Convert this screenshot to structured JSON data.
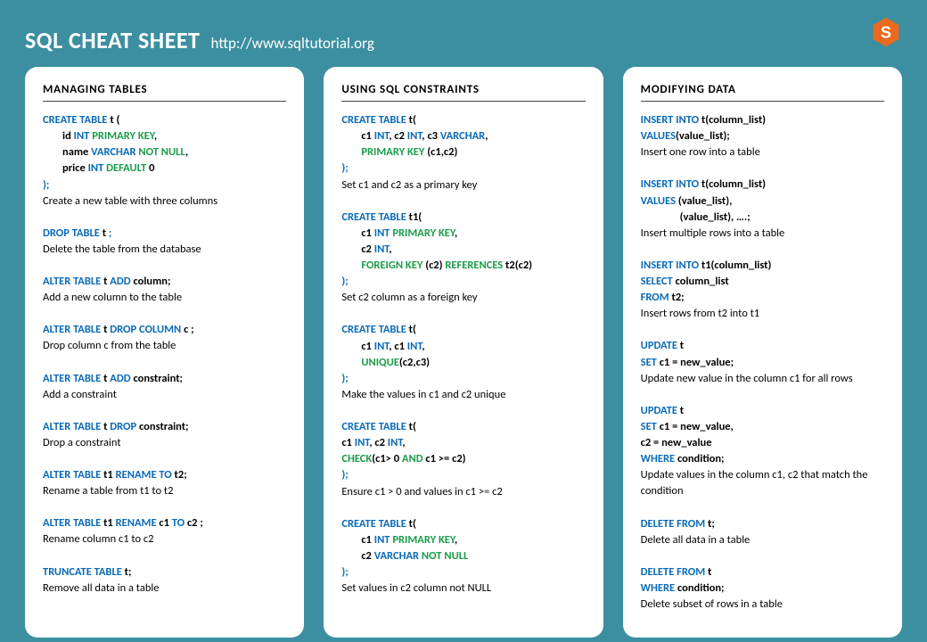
{
  "colors": {
    "page_bg": "#3b8fa0",
    "card_bg": "#ffffff",
    "keyword": "#0a6ab6",
    "function": "#1a9c4a",
    "text": "#000000",
    "title": "#ffffff",
    "logo_fill": "#e96a1f"
  },
  "header": {
    "title": "SQL CHEAT SHEET",
    "url": "http://www.sqltutorial.org"
  },
  "columns": [
    {
      "title": "MANAGING  TABLES",
      "blocks": [
        {
          "lines": [
            [
              [
                "kw",
                "CREATE TABLE "
              ],
              [
                "id",
                "t ("
              ]
            ],
            [
              "indent",
              [
                "id",
                "id "
              ],
              [
                "ty",
                "INT "
              ],
              [
                "fn",
                "PRIMARY  KEY"
              ],
              [
                "id",
                ","
              ]
            ],
            [
              "indent",
              [
                "id",
                "name "
              ],
              [
                "ty",
                "VARCHAR  "
              ],
              [
                "fn",
                "NOT NULL"
              ],
              [
                "id",
                ","
              ]
            ],
            [
              "indent",
              [
                "id",
                "price "
              ],
              [
                "ty",
                "INT "
              ],
              [
                "fn",
                "DEFAULT "
              ],
              [
                "id",
                "0"
              ]
            ],
            [
              [
                "kw",
                ");"
              ]
            ]
          ],
          "desc": "Create a new table with  three columns"
        },
        {
          "lines": [
            [
              [
                "kw",
                "DROP TABLE "
              ],
              [
                "id",
                "t "
              ],
              [
                "kw",
                ";"
              ]
            ]
          ],
          "desc": "Delete the table from the database"
        },
        {
          "lines": [
            [
              [
                "kw",
                "ALTER TABLE "
              ],
              [
                "id",
                "t "
              ],
              [
                "kw",
                "ADD "
              ],
              [
                "id",
                "column;"
              ]
            ]
          ],
          "desc": "Add a new column to the table"
        },
        {
          "lines": [
            [
              [
                "kw",
                "ALTER TABLE "
              ],
              [
                "id",
                "t "
              ],
              [
                "kw",
                "DROP COLUMN  "
              ],
              [
                "id",
                "c ;"
              ]
            ]
          ],
          "desc": "Drop column c from the table"
        },
        {
          "lines": [
            [
              [
                "kw",
                "ALTER TABLE "
              ],
              [
                "id",
                "t "
              ],
              [
                "kw",
                "ADD "
              ],
              [
                "id",
                "constraint;"
              ]
            ]
          ],
          "desc": "Add a constraint"
        },
        {
          "lines": [
            [
              [
                "kw",
                "ALTER TABLE "
              ],
              [
                "id",
                "t "
              ],
              [
                "kw",
                "DROP "
              ],
              [
                "id",
                "constraint;"
              ]
            ]
          ],
          "desc": "Drop a constraint"
        },
        {
          "lines": [
            [
              [
                "kw",
                "ALTER TABLE "
              ],
              [
                "id",
                "t1 "
              ],
              [
                "kw",
                "RENAME TO "
              ],
              [
                "id",
                "t2;"
              ]
            ]
          ],
          "desc": "Rename a table from t1 to t2"
        },
        {
          "lines": [
            [
              [
                "kw",
                "ALTER TABLE "
              ],
              [
                "id",
                "t1 "
              ],
              [
                "kw",
                "RENAME  "
              ],
              [
                "id",
                "c1 "
              ],
              [
                "kw",
                "TO "
              ],
              [
                "id",
                "c2 ;"
              ]
            ]
          ],
          "desc": "Rename column c1 to c2"
        },
        {
          "lines": [
            [
              [
                "kw",
                "TRUNCATE  TABLE "
              ],
              [
                "id",
                "t;"
              ]
            ]
          ],
          "desc": "Remove all data in a table"
        }
      ]
    },
    {
      "title": "USING  SQL CONSTRAINTS",
      "blocks": [
        {
          "lines": [
            [
              [
                "kw",
                "CREATE TABLE "
              ],
              [
                "id",
                "t("
              ]
            ],
            [
              "indent",
              [
                "id",
                "c1 "
              ],
              [
                "ty",
                "INT"
              ],
              [
                "id",
                ", c2 "
              ],
              [
                "ty",
                "INT"
              ],
              [
                "id",
                ", c3 "
              ],
              [
                "ty",
                "VARCHAR"
              ],
              [
                "id",
                ","
              ]
            ],
            [
              "indent",
              [
                "fn",
                "PRIMARY KEY  "
              ],
              [
                "id",
                "("
              ],
              [
                "id",
                "c1,c2"
              ],
              [
                "id",
                ")"
              ]
            ],
            [
              [
                "kw",
                ");"
              ]
            ]
          ],
          "desc": "Set c1 and c2 as a primary key"
        },
        {
          "lines": [
            [
              [
                "kw",
                "CREATE TABLE "
              ],
              [
                "id",
                "t1("
              ]
            ],
            [
              "indent",
              [
                "id",
                "c1 "
              ],
              [
                "ty",
                "INT "
              ],
              [
                "fn",
                "PRIMARY KEY"
              ],
              [
                "id",
                ","
              ]
            ],
            [
              "indent",
              [
                "id",
                "c2 "
              ],
              [
                "ty",
                "INT"
              ],
              [
                "id",
                ","
              ]
            ],
            [
              "indent",
              [
                "fn",
                "FOREIGN KEY "
              ],
              [
                "id",
                "(c2) "
              ],
              [
                "fn",
                "REFERENCES  "
              ],
              [
                "id",
                "t2(c2)"
              ]
            ],
            [
              [
                "kw",
                ");"
              ]
            ]
          ],
          "desc": "Set c2 column as a foreign key"
        },
        {
          "lines": [
            [
              [
                "kw",
                "CREATE TABLE "
              ],
              [
                "id",
                "t("
              ]
            ],
            [
              "indent",
              [
                "id",
                "c1 "
              ],
              [
                "ty",
                "INT"
              ],
              [
                "id",
                ", c1 "
              ],
              [
                "ty",
                "INT"
              ],
              [
                "id",
                ","
              ]
            ],
            [
              "indent",
              [
                "fn",
                "UNIQUE"
              ],
              [
                "id",
                "("
              ],
              [
                "id",
                "c2,c3"
              ],
              [
                "id",
                ")"
              ]
            ],
            [
              [
                "kw",
                ");"
              ]
            ]
          ],
          "desc": "Make the values in c1 and c2 unique"
        },
        {
          "lines": [
            [
              [
                "kw",
                "CREATE TABLE "
              ],
              [
                "id",
                "t("
              ]
            ],
            [
              [
                "id",
                "  c1 "
              ],
              [
                "ty",
                "INT"
              ],
              [
                "id",
                ", c2 "
              ],
              [
                "ty",
                "INT"
              ],
              [
                "id",
                ","
              ]
            ],
            [
              [
                "id",
                "  "
              ],
              [
                "fn",
                "CHECK"
              ],
              [
                "id",
                "(c1>  0 "
              ],
              [
                "fn",
                "AND"
              ],
              [
                "id",
                " c1 >= c2)"
              ]
            ],
            [
              [
                "kw",
                ");"
              ]
            ]
          ],
          "desc": "Ensure c1 > 0 and values in c1 >= c2"
        },
        {
          "lines": [
            [
              [
                "kw",
                "CREATE TABLE "
              ],
              [
                "id",
                "t("
              ]
            ],
            [
              "indent",
              [
                "id",
                "c1 "
              ],
              [
                "ty",
                "INT "
              ],
              [
                "fn",
                "PRIMARY KEY"
              ],
              [
                "id",
                ","
              ]
            ],
            [
              "indent",
              [
                "id",
                "c2 "
              ],
              [
                "ty",
                "VARCHAR  "
              ],
              [
                "fn",
                "NOT NULL"
              ]
            ],
            [
              [
                "kw",
                ");"
              ]
            ]
          ],
          "desc": "Set values in c2 column not NULL"
        }
      ]
    },
    {
      "title": "MODIFYING  DATA",
      "blocks": [
        {
          "lines": [
            [
              [
                "kw",
                "INSERT INTO "
              ],
              [
                "id",
                "t(column_list)"
              ]
            ],
            [
              [
                "kw",
                "VALUES"
              ],
              [
                "id",
                "(value_list);"
              ]
            ]
          ],
          "desc": "Insert one row into a table"
        },
        {
          "lines": [
            [
              [
                "kw",
                "INSERT INTO "
              ],
              [
                "id",
                "t(column_list)"
              ]
            ],
            [
              [
                "kw",
                "VALUES  "
              ],
              [
                "id",
                "(value_list), "
              ]
            ],
            [
              "indent2",
              [
                "id",
                "(value_list), ….;"
              ]
            ]
          ],
          "desc": "Insert multiple rows into a table"
        },
        {
          "lines": [
            [
              [
                "kw",
                "INSERT INTO "
              ],
              [
                "id",
                "t1(column_list)"
              ]
            ],
            [
              [
                "kw",
                "SELECT  "
              ],
              [
                "id",
                "column_list"
              ]
            ],
            [
              [
                "kw",
                "FROM  "
              ],
              [
                "id",
                "t2;"
              ]
            ]
          ],
          "desc": "Insert rows from t2 into t1"
        },
        {
          "lines": [
            [
              [
                "kw",
                "UPDATE "
              ],
              [
                "id",
                "t"
              ]
            ],
            [
              [
                "kw",
                "SET "
              ],
              [
                "id",
                "c1 = new_value;"
              ]
            ]
          ],
          "desc": "Update new value in the column c1 for all rows"
        },
        {
          "lines": [
            [
              [
                "kw",
                "UPDATE "
              ],
              [
                "id",
                "t"
              ]
            ],
            [
              [
                "kw",
                "SET "
              ],
              [
                "id",
                "c1 = new_value, "
              ]
            ],
            [
              [
                "id",
                "        c2 = new_value"
              ]
            ],
            [
              [
                "kw",
                "WHERE "
              ],
              [
                "id",
                "condition;"
              ]
            ]
          ],
          "desc": "Update values in the column c1, c2 that match the condition"
        },
        {
          "lines": [
            [
              [
                "kw",
                "DELETE FROM "
              ],
              [
                "id",
                "t;"
              ]
            ]
          ],
          "desc": "Delete all data in a table"
        },
        {
          "lines": [
            [
              [
                "kw",
                "DELETE FROM "
              ],
              [
                "id",
                "t"
              ]
            ],
            [
              [
                "kw",
                "WHERE  "
              ],
              [
                "id",
                "condition;"
              ]
            ]
          ],
          "desc": "Delete subset of rows in a table"
        }
      ]
    }
  ]
}
